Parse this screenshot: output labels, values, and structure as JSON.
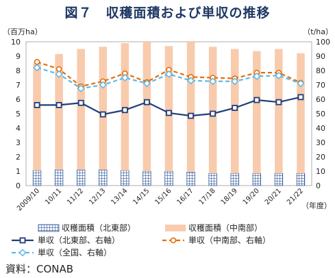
{
  "title": "図７　収穫面積および単収の推移",
  "source": "資料：CONAB",
  "chart_data": {
    "type": "bar",
    "categories": [
      "2009/10",
      "10/11",
      "11/12",
      "12/13",
      "13/14",
      "14/15",
      "15/16",
      "16/17",
      "17/18",
      "18/19",
      "19/20",
      "20/21",
      "21/22"
    ],
    "left_axis": {
      "unit": "（百万ha）",
      "ylim": [
        0,
        10
      ],
      "ticks": [
        0,
        1,
        2,
        3,
        4,
        5,
        6,
        7,
        8,
        9,
        10
      ]
    },
    "right_axis": {
      "unit": "（t/ha）",
      "ylim": [
        0,
        100
      ],
      "ticks": [
        0,
        10,
        20,
        30,
        40,
        50,
        60,
        70,
        80,
        90,
        100
      ]
    },
    "x_unit": "（年度）",
    "grid": false,
    "legend_position": "bottom",
    "series": [
      {
        "name": "収穫面積（北東部）",
        "kind": "bar",
        "axis": "left",
        "pattern": "grid",
        "color": "#2e5597",
        "values": [
          1.05,
          1.1,
          1.1,
          1.1,
          1.05,
          1.0,
          1.0,
          0.95,
          0.85,
          0.85,
          0.85,
          0.85,
          0.85
        ]
      },
      {
        "name": "収穫面積（中南部）",
        "kind": "bar",
        "axis": "left",
        "color": "#f8cbad",
        "values": [
          7.45,
          8.05,
          8.4,
          8.55,
          8.85,
          9.05,
          8.7,
          9.1,
          8.8,
          8.65,
          8.5,
          8.65,
          8.35
        ]
      },
      {
        "name": "単収（北東部、右軸）",
        "kind": "line",
        "axis": "right",
        "color": "#1f3d7a",
        "marker": "square",
        "values": [
          56,
          56,
          57.5,
          49.5,
          52.5,
          58,
          50.5,
          48.5,
          50,
          54,
          59.5,
          58,
          61.5
        ]
      },
      {
        "name": "単収（中南部、右軸）",
        "kind": "line",
        "axis": "right",
        "color": "#e46c0a",
        "dash": true,
        "marker": "circle",
        "values": [
          86,
          81,
          69,
          72.5,
          78,
          72,
          80.5,
          75.5,
          75,
          74.5,
          78.5,
          78.5,
          71.5
        ]
      },
      {
        "name": "単収（全国、右軸）",
        "kind": "line",
        "axis": "right",
        "color": "#5bb8e6",
        "dash": true,
        "marker": "diamond",
        "values": [
          82,
          77.5,
          67.5,
          70,
          75,
          71,
          77.5,
          73,
          72.5,
          72.5,
          76,
          76.5,
          71
        ]
      }
    ]
  }
}
